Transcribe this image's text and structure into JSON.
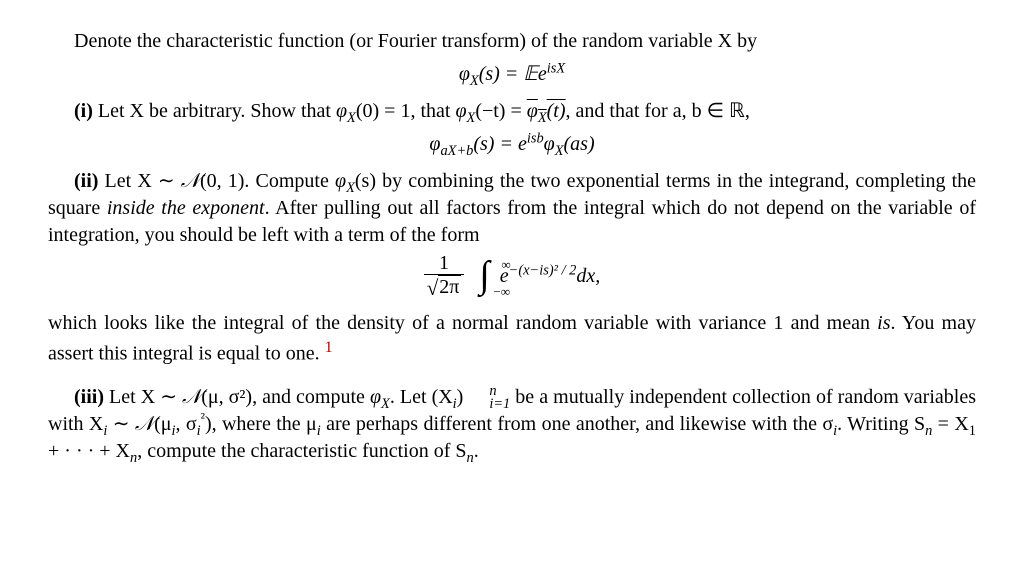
{
  "line1": "Denote the characteristic function (or Fourier transform) of the random variable X by",
  "eq1_lhs": "φ",
  "eq1_sub": "X",
  "eq1_arg": "(s) = ",
  "eq1_E": "𝔼",
  "eq1_rhs": "e",
  "eq1_exp": "isX",
  "i_label": "(i)",
  "i_text_a": " Let X be arbitrary. Show that ",
  "i_phi0": "φ",
  "i_phi0_sub": "X",
  "i_phi0_arg": "(0) = 1, that ",
  "i_phit": "φ",
  "i_phit_sub": "X",
  "i_phit_arg": "(−t) = ",
  "i_phit_bar": "φ",
  "i_phit_bar_sub": "X",
  "i_phit_bar_arg": "(t)",
  "i_text_b": ", and that for a, b ∈ ",
  "i_R": "ℝ",
  "i_comma": ",",
  "eq2_lhs": "φ",
  "eq2_sub": "aX+b",
  "eq2_arg": "(s) = e",
  "eq2_exp": "isb",
  "eq2_phi": "φ",
  "eq2_phi_sub": "X",
  "eq2_phi_arg": "(as)",
  "ii_label": "(ii)",
  "ii_text_a": " Let X ∼ ",
  "ii_N": "𝒩",
  "ii_N_arg": "(0, 1).  Compute ",
  "ii_phi": "φ",
  "ii_phi_sub": "X",
  "ii_phi_arg": "(s)",
  "ii_text_b": " by combining the two exponential terms in the integrand, completing the square ",
  "ii_emph": "inside the exponent",
  "ii_text_c": ". After pulling out all factors from the integral which do not depend on the variable of integration, you should be left with a term of the form",
  "eq3_frac_num": "1",
  "eq3_frac_den_2pi": "2π",
  "eq3_ub": "∞",
  "eq3_lb": "−∞",
  "eq3_e": "e",
  "eq3_exp": "−(x−is)² / 2",
  "eq3_dx": "dx,",
  "ii_text_d": "which looks like the integral of the density of a normal random variable with variance 1 and mean ",
  "ii_is": "is",
  "ii_text_e": ". You may assert this integral is equal to one. ",
  "ii_foot": "1",
  "iii_label": "(iii)",
  "iii_text_a": " Let X ∼ ",
  "iii_N": "𝒩",
  "iii_N_arg": "(μ, σ²), and compute ",
  "iii_phi": "φ",
  "iii_phi_sub": "X",
  "iii_text_b": ". Let (X",
  "iii_i": "i",
  "iii_paren": ")",
  "iii_sup": "n",
  "iii_sub": "i=1",
  "iii_text_c": " be a mutually independent collection of random variables with X",
  "iii_text_c2": " ∼ ",
  "iii_N2": "𝒩",
  "iii_N2_arg": "(μ",
  "iii_N2_mid": ", σ",
  "iii_N2_sq": "²",
  "iii_N2_close": "), where the μ",
  "iii_text_d": " are perhaps different from one another, and likewise with the σ",
  "iii_text_e": ". Writing S",
  "iii_Sn_sub": "n",
  "iii_text_f": " = X",
  "iii_one": "1",
  "iii_text_g": " + · · · + X",
  "iii_n": "n",
  "iii_text_h": ", compute the characteristic function of S",
  "iii_Sn2_sub": "n",
  "iii_period": "."
}
